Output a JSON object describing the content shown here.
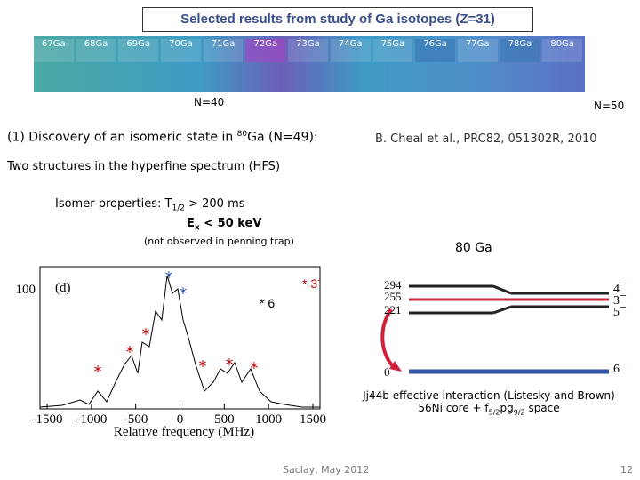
{
  "title": "Selected results from study of Ga isotopes (Z=31)",
  "nuclides": [
    "67Ga",
    "68Ga",
    "69Ga",
    "70Ga",
    "71Ga",
    "72Ga",
    "73Ga",
    "74Ga",
    "75Ga",
    "76Ga",
    "77Ga",
    "78Ga",
    "80Ga"
  ],
  "n40": "N=40",
  "n50": "N=50",
  "section": {
    "pre": "(1)  Discovery of an isomeric state in ",
    "sup": "80",
    "post": "Ga (N=49):"
  },
  "reference": "B. Cheal et al., PRC82, 051302R, 2010",
  "statement": "Two structures in the hyperfine spectrum (HFS)",
  "isomer": {
    "label": "Isomer properties:  T",
    "sub": "1/2",
    "rest": " > 200 ms",
    "e": "E",
    "esub": "x",
    "erest": " < 50 keV"
  },
  "note": "(not observed in penning trap)",
  "nucleus": "80 Ga",
  "plot": {
    "panel": "(d)",
    "yticks": [
      "100"
    ],
    "xticks": [
      "-1500",
      "-1000",
      "-500",
      "0",
      "500",
      "1000",
      "1500"
    ],
    "xlabel": "Relative frequency (MHz)",
    "marker": "*",
    "legend": [
      {
        "text": "* 3",
        "sup": "-"
      },
      {
        "text": "* 6",
        "sup": "-"
      }
    ]
  },
  "levels": {
    "energies": [
      "294",
      "255",
      "221",
      "0"
    ],
    "spins": [
      {
        "j": "4",
        "sup": "−"
      },
      {
        "j": "3",
        "sup": "−"
      },
      {
        "j": "5",
        "sup": "−"
      },
      {
        "j": "6",
        "sup": "−"
      }
    ]
  },
  "theory": {
    "line1": "Jj44b effective interaction (Listesky and Brown)",
    "line2pre": "56Ni core + f",
    "sub1": "5/2",
    "mid": "pg",
    "sub2": "9/2",
    "post": " space"
  },
  "footer": "Saclay, May 2012",
  "page": "12"
}
